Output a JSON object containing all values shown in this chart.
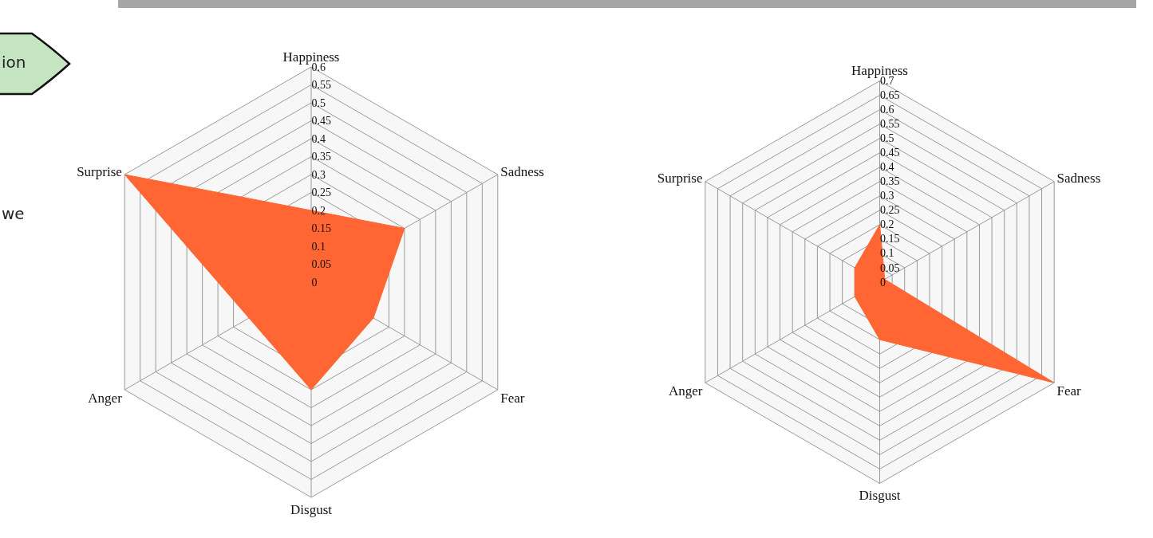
{
  "chart_data": [
    {
      "type": "radar",
      "categories": [
        "Happiness",
        "Sadness",
        "Fear",
        "Disgust",
        "Anger",
        "Surprise"
      ],
      "series": [
        {
          "color": "#ff6633",
          "values": [
            0.2,
            0.3,
            0.2,
            0.3,
            0.2,
            0.6
          ]
        }
      ],
      "ylim": [
        0,
        0.6
      ],
      "yticks": [
        0,
        0.05,
        0.1,
        0.15,
        0.2,
        0.25,
        0.3,
        0.35,
        0.4,
        0.45,
        0.5,
        0.55,
        0.6
      ],
      "grid": true,
      "marker": "none",
      "annotations": [
        "ion",
        "we"
      ]
    },
    {
      "type": "radar",
      "categories": [
        "Happiness",
        "Sadness",
        "Fear",
        "Disgust",
        "Anger",
        "Surprise"
      ],
      "series": [
        {
          "color": "#ff6633",
          "values": [
            0.2,
            0.02,
            0.7,
            0.2,
            0.1,
            0.1
          ]
        }
      ],
      "ylim": [
        0,
        0.7
      ],
      "yticks": [
        0,
        0.05,
        0.1,
        0.15,
        0.2,
        0.25,
        0.3,
        0.35,
        0.4,
        0.45,
        0.5,
        0.55,
        0.6,
        0.65,
        0.7
      ],
      "grid": true,
      "marker": "none"
    }
  ]
}
